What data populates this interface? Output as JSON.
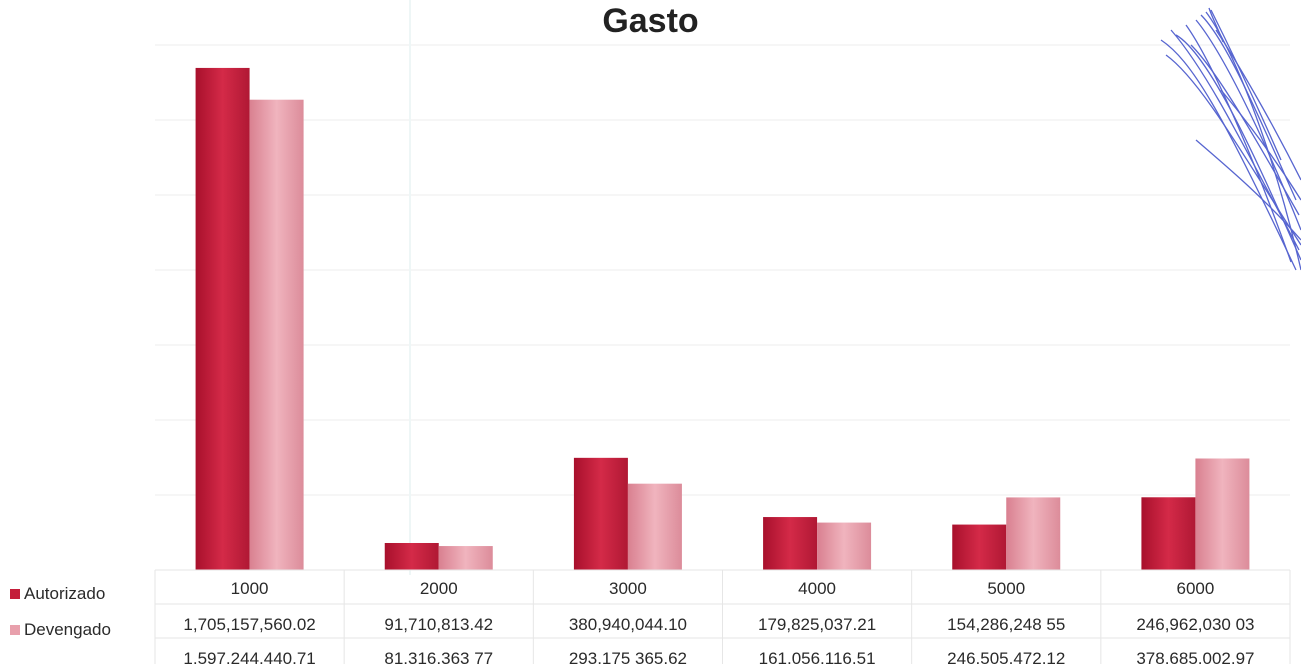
{
  "chart_data": {
    "type": "bar",
    "title": "Gasto",
    "categories": [
      "1000",
      "2000",
      "3000",
      "4000",
      "5000",
      "6000"
    ],
    "series": [
      {
        "name": "Autorizado",
        "color": "#c41e3a",
        "values": [
          1705157560.02,
          91710813.42,
          380940044.1,
          179825037.21,
          154286248.55,
          246962030.03
        ],
        "labels": [
          "1,705,157,560.02",
          "91,710,813.42",
          "380,940,044.10",
          "179,825,037.21",
          "154,286,248 55",
          "246,962,030 03"
        ]
      },
      {
        "name": "Devengado",
        "color": "#e8a0ac",
        "values": [
          1597244440.71,
          81316363.77,
          293175365.62,
          161056116.51,
          246505472.12,
          378685002.97
        ],
        "labels": [
          "1,597,244,440.71",
          "81,316,363 77",
          "293,175 365.62",
          "161,056,116.51",
          "246,505,472.12",
          "378,685,002.97"
        ]
      }
    ],
    "ylim": [
      0,
      1800000000
    ],
    "grid": true,
    "legend": "data-table-bottom"
  }
}
